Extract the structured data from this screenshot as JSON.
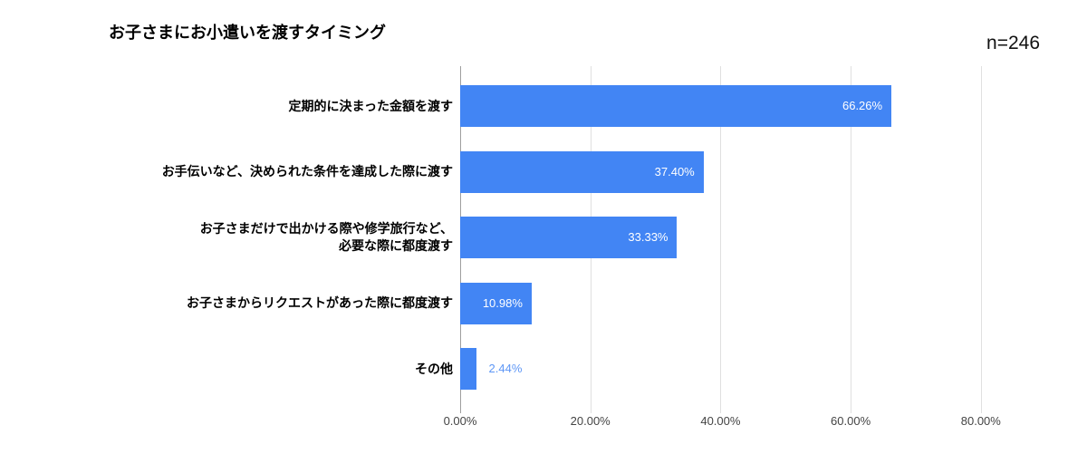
{
  "chart_data": {
    "type": "bar",
    "orientation": "horizontal",
    "title": "お子さまにお小遣いを渡すタイミング",
    "n_label": "n=246",
    "categories": [
      "定期的に決まった金額を渡す",
      "お手伝いなど、決められた条件を達成した際に渡す",
      "お子さまだけで出かける際や修学旅行など、\n必要な際に都度渡す",
      "お子さまからリクエストがあった際に都度渡す",
      "その他"
    ],
    "values": [
      66.26,
      37.4,
      33.33,
      10.98,
      2.44
    ],
    "value_labels": [
      "66.26%",
      "37.40%",
      "33.33%",
      "10.98%",
      "2.44%"
    ],
    "x_ticks": [
      {
        "label": "0.00%",
        "value": 0
      },
      {
        "label": "20.00%",
        "value": 20
      },
      {
        "label": "40.00%",
        "value": 40
      },
      {
        "label": "60.00%",
        "value": 60
      },
      {
        "label": "80.00%",
        "value": 80
      }
    ],
    "xlim": [
      0,
      90
    ],
    "ylabel": "",
    "xlabel": "",
    "grid": true,
    "colors": {
      "bar": "#4285f4",
      "value_label_inside": "#ffffff",
      "value_label_outside": "#5e97f6",
      "gridline": "#e0e0e0",
      "axis_line": "#9e9e9e",
      "title_text": "#000000",
      "axis_text": "#444444"
    }
  }
}
